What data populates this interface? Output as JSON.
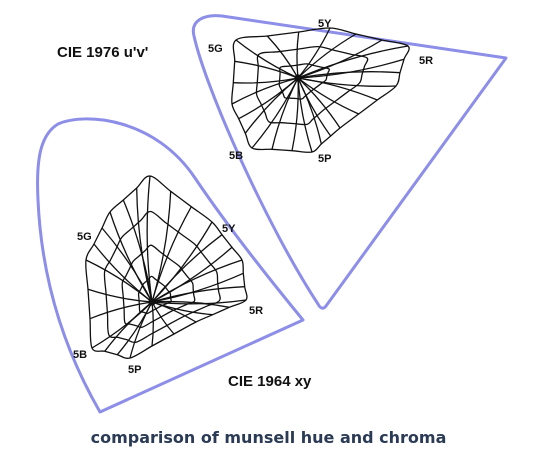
{
  "diagrams": {
    "uv": {
      "title": "CIE 1976 u'v'",
      "hues": [
        "5Y",
        "5G",
        "5R",
        "5B",
        "5P"
      ]
    },
    "xy": {
      "title": "CIE 1964 xy",
      "hues": [
        "5Y",
        "5G",
        "5R",
        "5B",
        "5P"
      ]
    }
  },
  "caption": "comparison of munsell hue and chroma",
  "colors": {
    "locus": "#8c8ee8",
    "grid": "#111111",
    "caption": "#2b3a55"
  }
}
